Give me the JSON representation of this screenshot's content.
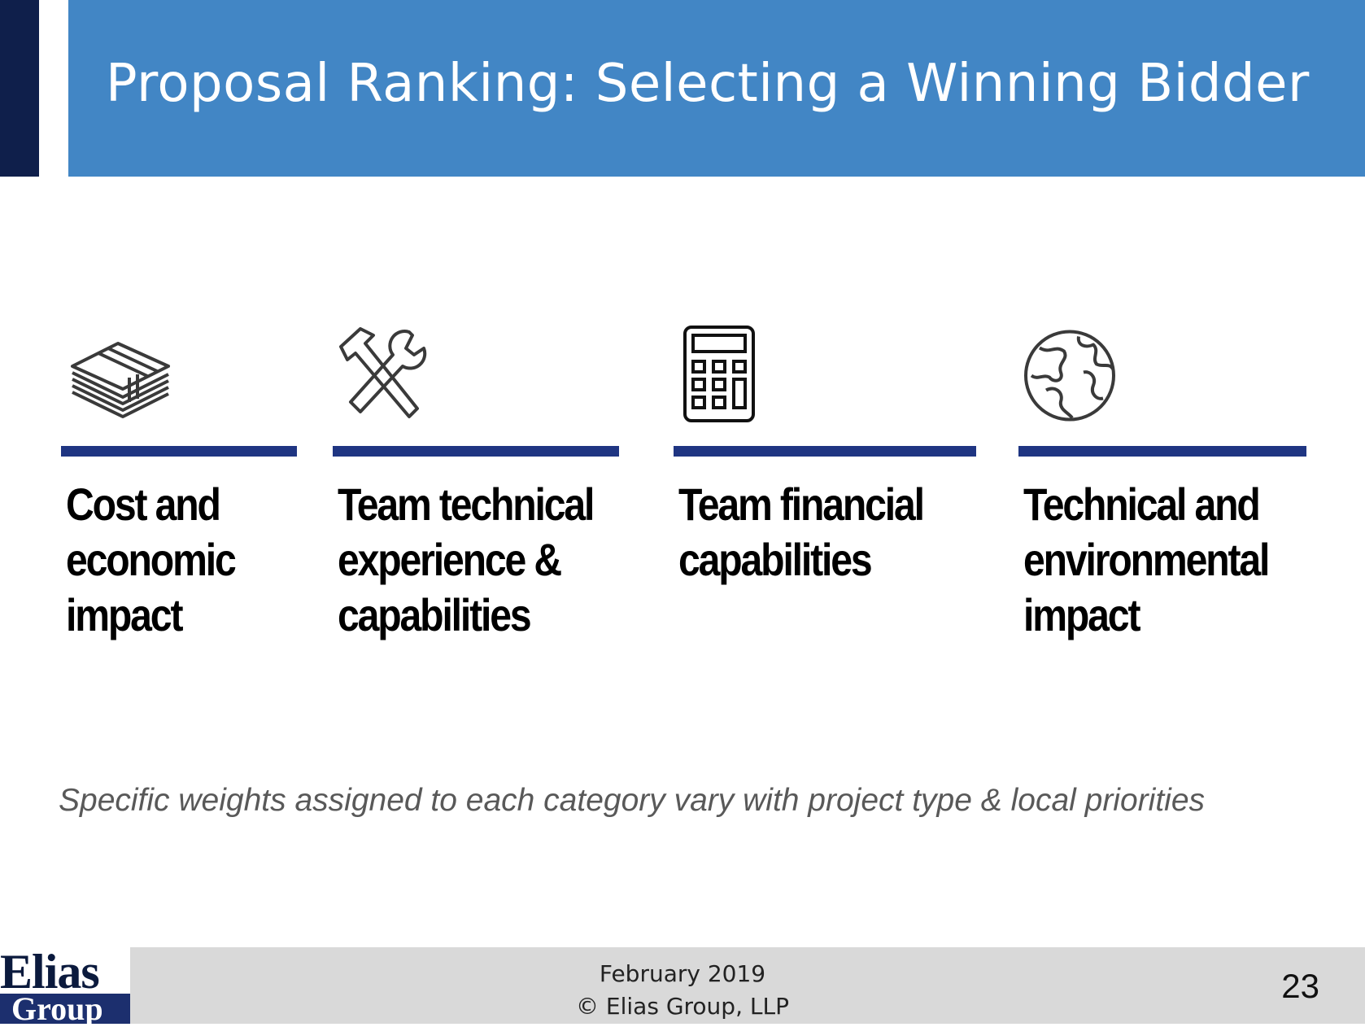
{
  "title": "Proposal Ranking: Selecting a Winning Bidder",
  "categories": [
    {
      "icon": "money-stack-icon",
      "label": "Cost and economic impact"
    },
    {
      "icon": "hammer-wrench-icon",
      "label": "Team technical experience & capabilities"
    },
    {
      "icon": "calculator-icon",
      "label": "Team financial capabilities"
    },
    {
      "icon": "globe-icon",
      "label": "Technical and environmental impact"
    }
  ],
  "note": "Specific weights assigned to each category vary with project type & local priorities",
  "footer": {
    "logo_top": "Elias",
    "logo_bottom": "Group",
    "date": "February 2019",
    "copyright": "© Elias Group, LLP",
    "page_number": "23"
  },
  "colors": {
    "title_band": "#4286c5",
    "left_bar": "#0f1f4b",
    "rule": "#1f3582",
    "footer_band": "#d9d9d9"
  }
}
